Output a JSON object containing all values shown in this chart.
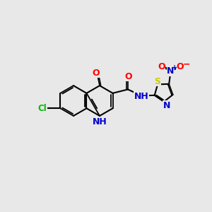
{
  "bg_color": "#e8e8e8",
  "bond_color": "#000000",
  "bond_width": 1.5,
  "atom_colors": {
    "N": "#0000cc",
    "O": "#ff0000",
    "S": "#cccc00",
    "Cl": "#00bb00"
  },
  "font_size": 9,
  "fig_width": 3.0,
  "fig_height": 3.0,
  "dpi": 100
}
